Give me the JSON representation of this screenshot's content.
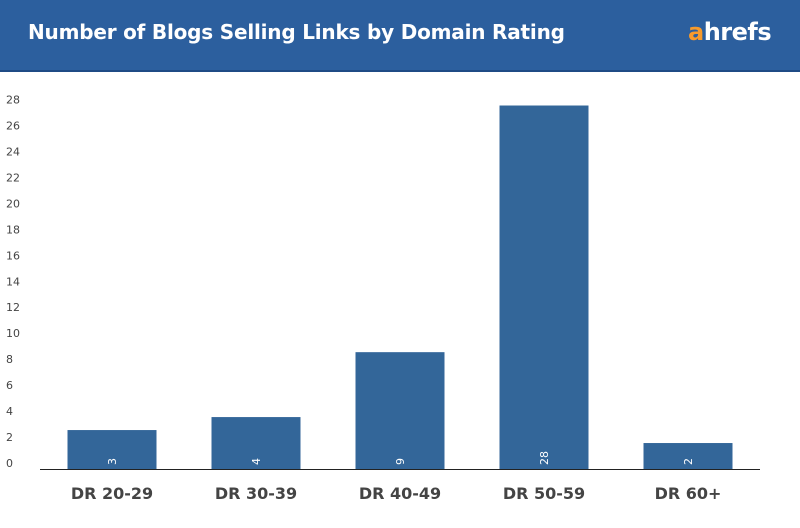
{
  "header": {
    "title": "Number of Blogs Selling Links by Domain Rating",
    "logo_first": "a",
    "logo_rest": "hrefs"
  },
  "colors": {
    "header_bg": "#2c5f9e",
    "bar": "#336699",
    "logo_accent": "#f79a2b",
    "axis_text": "#444444"
  },
  "chart_data": {
    "type": "bar",
    "title": "Number of Blogs Selling Links by Domain Rating",
    "categories": [
      "DR 20-29",
      "DR 30-39",
      "DR 40-49",
      "DR 50-59",
      "DR 60+"
    ],
    "values": [
      3,
      4,
      9,
      28,
      2
    ],
    "data_labels": [
      "3",
      "4",
      "9",
      "28",
      "2"
    ],
    "ylim": [
      0,
      28
    ],
    "yticks": [
      0,
      2,
      4,
      6,
      8,
      10,
      12,
      14,
      16,
      18,
      20,
      22,
      24,
      26,
      28
    ],
    "xlabel": "",
    "ylabel": "",
    "grid": false,
    "legend": "none"
  }
}
